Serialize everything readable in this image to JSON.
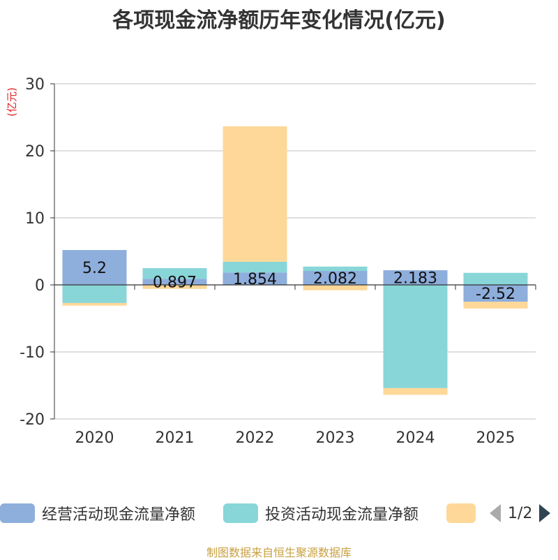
{
  "chart_data": {
    "type": "bar",
    "stacked": true,
    "title": "各项现金流净额历年变化情况(亿元)",
    "ylabel": "(亿元)",
    "xlabel": "",
    "ylim": [
      -20,
      30
    ],
    "yticks": [
      30,
      20,
      10,
      0,
      -10,
      -20
    ],
    "categories": [
      "2020",
      "2021",
      "2022",
      "2023",
      "2024",
      "2025"
    ],
    "series": [
      {
        "name": "经营活动现金流量净额",
        "color": "#8eaedc",
        "values": [
          5.2,
          0.897,
          1.854,
          2.082,
          2.183,
          -2.52
        ]
      },
      {
        "name": "投资活动现金流量净额",
        "color": "#88d6d8",
        "values": [
          -2.7,
          1.6,
          1.6,
          0.65,
          -15.4,
          1.8
        ]
      },
      {
        "name": "",
        "color": "#fed898",
        "values": [
          -0.4,
          -0.6,
          20.2,
          -0.8,
          -1.0,
          -1.0
        ]
      }
    ],
    "data_labels": [
      "5.2",
      "0.897",
      "1.854",
      "2.082",
      "2.183",
      "-2.52"
    ],
    "grid": true,
    "legend_position": "bottom"
  },
  "legend": {
    "items": [
      "经营活动现金流量净额",
      "投资活动现金流量净额",
      ""
    ],
    "page": "1/2"
  },
  "source": "制图数据来自恒生聚源数据库"
}
